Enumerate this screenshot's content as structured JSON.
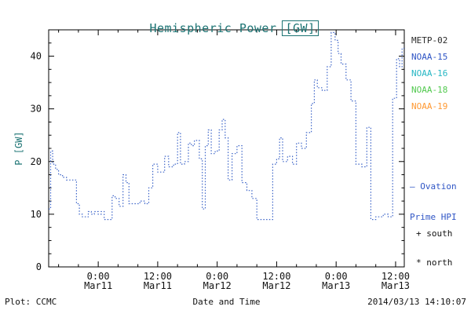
{
  "title": {
    "prefix": "Hemispheric Power",
    "unit": "[GW]",
    "color": "#1d7474"
  },
  "y_axis_label": "P [GW]",
  "legend": {
    "satellites": [
      {
        "label": "METP-02",
        "color": "#2b2b2b"
      },
      {
        "label": "NOAA-15",
        "color": "#2f55c5"
      },
      {
        "label": "NOAA-16",
        "color": "#27b7c4"
      },
      {
        "label": "NOAA-18",
        "color": "#52c94f"
      },
      {
        "label": "NOAA-19",
        "color": "#ff9933"
      }
    ]
  },
  "annotations": {
    "ovation_line1": "— Ovation",
    "ovation_line2": "Prime HPI",
    "ovation_color": "#2f55c5",
    "south_marker": "+ south",
    "north_marker": "* north"
  },
  "footer": {
    "plot_credit": "Plot: CCMC",
    "xlabel": "Date and Time",
    "timestamp": "2014/03/13 14:10:07"
  },
  "chart_data": {
    "type": "line",
    "style": "stepped-dotted",
    "title": "Hemispheric Power [GW]",
    "xlabel": "Date and Time",
    "ylabel": "P [GW]",
    "x_reference": "hours since 2014-03-11 00:00",
    "xlim_hours": [
      -10,
      61.75
    ],
    "ylim": [
      0,
      45
    ],
    "yticks": [
      0,
      10,
      20,
      30,
      40
    ],
    "xticks": [
      {
        "hour": 0,
        "time": "0:00",
        "date": "Mar11"
      },
      {
        "hour": 12,
        "time": "12:00",
        "date": "Mar11"
      },
      {
        "hour": 24,
        "time": "0:00",
        "date": "Mar12"
      },
      {
        "hour": 36,
        "time": "12:00",
        "date": "Mar12"
      },
      {
        "hour": 48,
        "time": "0:00",
        "date": "Mar13"
      },
      {
        "hour": 60,
        "time": "12:00",
        "date": "Mar13"
      }
    ],
    "series": [
      {
        "name": "Ovation Prime HPI (NOAA/METOP)",
        "color": "#3c64c8",
        "points": [
          [
            -10,
            11
          ],
          [
            -9.6,
            22
          ],
          [
            -9.2,
            19.5
          ],
          [
            -8.6,
            18.5
          ],
          [
            -8,
            17.5
          ],
          [
            -7.2,
            17
          ],
          [
            -6.4,
            16.5
          ],
          [
            -5,
            16.5
          ],
          [
            -4.4,
            12
          ],
          [
            -3.8,
            10
          ],
          [
            -3.2,
            9.5
          ],
          [
            -2.6,
            9.5
          ],
          [
            -2,
            10.5
          ],
          [
            -1.4,
            10
          ],
          [
            -0.8,
            10.5
          ],
          [
            0,
            10
          ],
          [
            0.6,
            10.5
          ],
          [
            1.2,
            9
          ],
          [
            2.2,
            9
          ],
          [
            2.8,
            13.5
          ],
          [
            3.4,
            13
          ],
          [
            4.2,
            11.5
          ],
          [
            5,
            17.5
          ],
          [
            5.6,
            16
          ],
          [
            6.2,
            12
          ],
          [
            7.4,
            12
          ],
          [
            8.4,
            12.5
          ],
          [
            9.4,
            12
          ],
          [
            10.2,
            15
          ],
          [
            11,
            19.5
          ],
          [
            12,
            18
          ],
          [
            12.8,
            18
          ],
          [
            13.4,
            21
          ],
          [
            14.2,
            19
          ],
          [
            15.2,
            19.5
          ],
          [
            16,
            25.5
          ],
          [
            16.6,
            19.5
          ],
          [
            17.4,
            20
          ],
          [
            18.2,
            23.5
          ],
          [
            18.8,
            23
          ],
          [
            19.4,
            24
          ],
          [
            20.4,
            20.5
          ],
          [
            21,
            11
          ],
          [
            21.6,
            23
          ],
          [
            22.2,
            26
          ],
          [
            22.8,
            21.5
          ],
          [
            23.6,
            22
          ],
          [
            24.4,
            26
          ],
          [
            25,
            28
          ],
          [
            25.6,
            24.5
          ],
          [
            26.2,
            16.5
          ],
          [
            27,
            21.5
          ],
          [
            28,
            23
          ],
          [
            29,
            16
          ],
          [
            30,
            14.5
          ],
          [
            31,
            13
          ],
          [
            32,
            9
          ],
          [
            34,
            9
          ],
          [
            35.2,
            19.5
          ],
          [
            36,
            20.5
          ],
          [
            36.6,
            24.5
          ],
          [
            37.2,
            20
          ],
          [
            38.2,
            21
          ],
          [
            39.2,
            19.5
          ],
          [
            40,
            23.5
          ],
          [
            41,
            22.5
          ],
          [
            42,
            25.5
          ],
          [
            43,
            31
          ],
          [
            43.6,
            35.5
          ],
          [
            44.2,
            34
          ],
          [
            45.2,
            33.5
          ],
          [
            46.2,
            38
          ],
          [
            47,
            44.5
          ],
          [
            47.8,
            43
          ],
          [
            48.4,
            40.5
          ],
          [
            49,
            38.5
          ],
          [
            50,
            35.5
          ],
          [
            51,
            31.5
          ],
          [
            52,
            19.5
          ],
          [
            53.2,
            19
          ],
          [
            54.2,
            26.5
          ],
          [
            55,
            9
          ],
          [
            56,
            9.5
          ],
          [
            57.5,
            10
          ],
          [
            58.5,
            9.5
          ],
          [
            59.4,
            32
          ],
          [
            60.2,
            39.5
          ],
          [
            60.8,
            38
          ],
          [
            61.3,
            41.5
          ],
          [
            61.75,
            41.5
          ]
        ]
      }
    ]
  }
}
